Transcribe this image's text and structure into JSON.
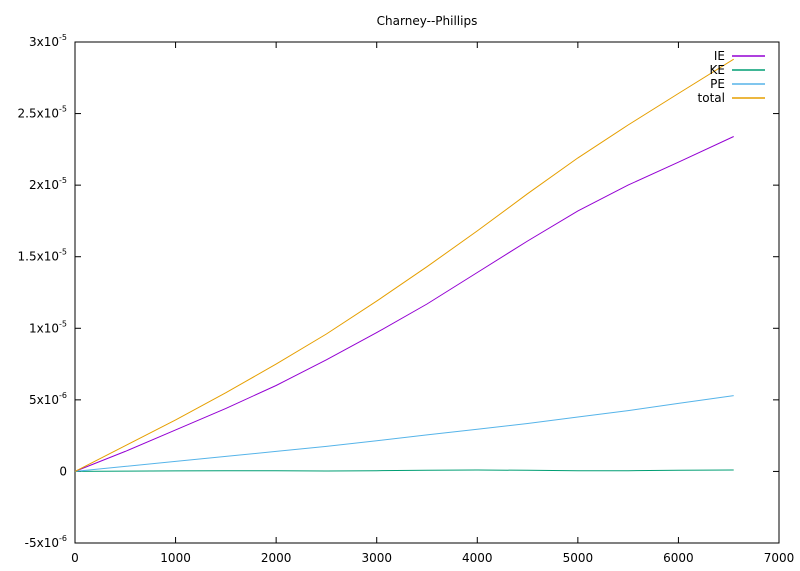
{
  "chart_data": {
    "type": "line",
    "title": "Charney--Phillips",
    "xlabel": "",
    "ylabel": "",
    "xlim": [
      0,
      7000
    ],
    "ylim": [
      -5e-06,
      3e-05
    ],
    "x_ticks": [
      {
        "value": 0,
        "label": "0"
      },
      {
        "value": 1000,
        "label": "1000"
      },
      {
        "value": 2000,
        "label": "2000"
      },
      {
        "value": 3000,
        "label": "3000"
      },
      {
        "value": 4000,
        "label": "4000"
      },
      {
        "value": 5000,
        "label": "5000"
      },
      {
        "value": 6000,
        "label": "6000"
      },
      {
        "value": 7000,
        "label": "7000"
      }
    ],
    "y_ticks": [
      {
        "value": -5e-06,
        "mant": "-5x10",
        "exp": "-6"
      },
      {
        "value": 0,
        "mant": "0",
        "exp": ""
      },
      {
        "value": 5e-06,
        "mant": "5x10",
        "exp": "-6"
      },
      {
        "value": 1e-05,
        "mant": "1x10",
        "exp": "-5"
      },
      {
        "value": 1.5e-05,
        "mant": "1.5x10",
        "exp": "-5"
      },
      {
        "value": 2e-05,
        "mant": "2x10",
        "exp": "-5"
      },
      {
        "value": 2.5e-05,
        "mant": "2.5x10",
        "exp": "-5"
      },
      {
        "value": 3e-05,
        "mant": "3x10",
        "exp": "-5"
      }
    ],
    "grid": false,
    "legend_position": "top-right",
    "x": [
      0,
      500,
      1000,
      1500,
      2000,
      2500,
      3000,
      3500,
      4000,
      4500,
      5000,
      5500,
      6000,
      6550
    ],
    "series": [
      {
        "name": "IE",
        "color": "#9400d3",
        "values": [
          0,
          1.4e-06,
          2.9e-06,
          4.4e-06,
          6e-06,
          7.8e-06,
          9.7e-06,
          1.17e-05,
          1.39e-05,
          1.61e-05,
          1.82e-05,
          2e-05,
          2.16e-05,
          2.34e-05
        ]
      },
      {
        "name": "KE",
        "color": "#009e73",
        "values": [
          0,
          2e-08,
          4e-08,
          5e-08,
          5e-08,
          3e-08,
          5e-08,
          8e-08,
          1e-07,
          8e-08,
          5e-08,
          5e-08,
          8e-08,
          1e-07
        ]
      },
      {
        "name": "PE",
        "color": "#56b4e9",
        "values": [
          0,
          3.5e-07,
          7e-07,
          1.05e-06,
          1.4e-06,
          1.75e-06,
          2.15e-06,
          2.55e-06,
          2.95e-06,
          3.35e-06,
          3.8e-06,
          4.25e-06,
          4.75e-06,
          5.3e-06
        ]
      },
      {
        "name": "total",
        "color": "#e69f00",
        "values": [
          0,
          1.8e-06,
          3.6e-06,
          5.5e-06,
          7.5e-06,
          9.6e-06,
          1.19e-05,
          1.43e-05,
          1.68e-05,
          1.94e-05,
          2.19e-05,
          2.42e-05,
          2.64e-05,
          2.88e-05
        ]
      }
    ]
  }
}
